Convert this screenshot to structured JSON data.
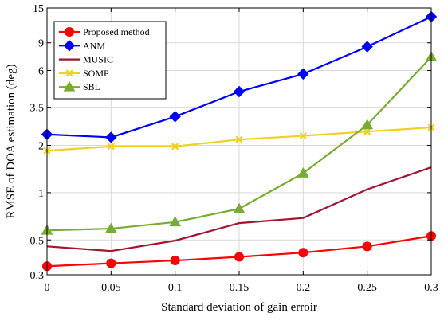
{
  "chart_data": {
    "type": "line",
    "xlabel": "Standard deviation of gain erroir",
    "ylabel": "RMSE of DOA estimation (deg)",
    "y_scale": "log",
    "grid": true,
    "legend_position": "top-left",
    "xlim": [
      0,
      0.3
    ],
    "ylim": [
      0.3,
      15
    ],
    "x_ticks": [
      "0",
      "0.05",
      "0.1",
      "0.15",
      "0.2",
      "0.25",
      "0.3"
    ],
    "y_ticks": [
      "0.3",
      "0.5",
      "1",
      "2",
      "3.5",
      "6",
      "9",
      "15"
    ],
    "x": [
      0,
      0.05,
      0.1,
      0.15,
      0.2,
      0.25,
      0.3
    ],
    "series": [
      {
        "name": "Proposed method",
        "color": "#ff0000",
        "marker": "circle",
        "values": [
          0.34,
          0.355,
          0.37,
          0.39,
          0.415,
          0.455,
          0.53
        ]
      },
      {
        "name": "ANM",
        "color": "#0000ff",
        "marker": "diamond",
        "values": [
          2.35,
          2.25,
          3.05,
          4.4,
          5.7,
          8.5,
          13.2
        ]
      },
      {
        "name": "MUSIC",
        "color": "#a2142f",
        "marker": "none",
        "values": [
          0.455,
          0.425,
          0.495,
          0.64,
          0.69,
          1.05,
          1.45
        ]
      },
      {
        "name": "SOMP",
        "color": "#f0d020",
        "marker": "x",
        "values": [
          1.85,
          1.97,
          1.97,
          2.18,
          2.3,
          2.45,
          2.6
        ]
      },
      {
        "name": "SBL",
        "color": "#77ac30",
        "marker": "triangle",
        "values": [
          0.575,
          0.59,
          0.65,
          0.79,
          1.33,
          2.7,
          7.3
        ]
      }
    ]
  }
}
